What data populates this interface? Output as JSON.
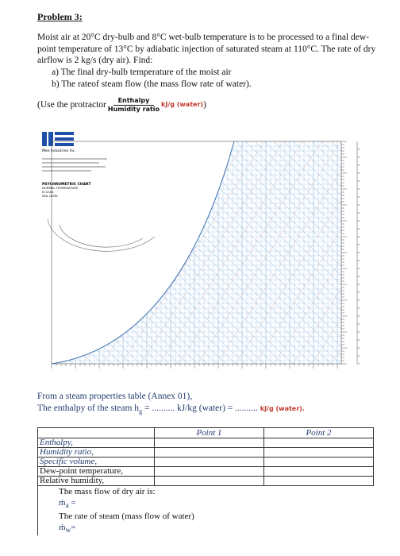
{
  "problem": {
    "title": "Problem 3:",
    "statement": "Moist air at 20°C dry-bulb and 8°C wet-bulb temperature is to be processed to a final dew-point temperature of 13°C by adiabatic injection of saturated steam at 110°C. The rate of dry airflow is 2 kg/s (dry air). Find:",
    "tasks": [
      "a) The final dry-bulb temperature of the moist air",
      "b) The rateof steam flow (the mass flow rate of water)."
    ],
    "protractor": {
      "prefix": "(Use the protractor",
      "numerator": "Enthalpy",
      "denominator": "Humidity ratio",
      "unit": "kJ/g (water)",
      "suffix": ")"
    }
  },
  "chart": {
    "company": "Mee Industries Inc.",
    "title": "PSYCHROMETRIC CHART",
    "lines": [
      "NORMAL TEMPERATURE",
      "SI Units",
      "SEA LEVEL"
    ]
  },
  "steam": {
    "source": "From a steam properties table (Annex 01),",
    "prefix": "The enthalpy of the steam h",
    "subscript": "g",
    "blank1": "= ..........",
    "unit1": "kJ/kg (water) =",
    "blank2": "..........",
    "unit2": "kJ/g (water)."
  },
  "table": {
    "header": [
      "Point 1",
      "Point 2"
    ],
    "rows": [
      "Enthalpy,",
      "Humidity ratio,",
      "Specific volume,",
      "Dew-point temperature,",
      "Relative humidity,"
    ],
    "notes": {
      "air": "The mass flow of dry air is:",
      "air_symbol": "ṁ",
      "air_sub": "a",
      "air_eq": "=",
      "steam": "The rate of steam (mass flow of water)",
      "steam_symbol": "ṁ",
      "steam_sub": "w",
      "steam_eq": "="
    }
  }
}
